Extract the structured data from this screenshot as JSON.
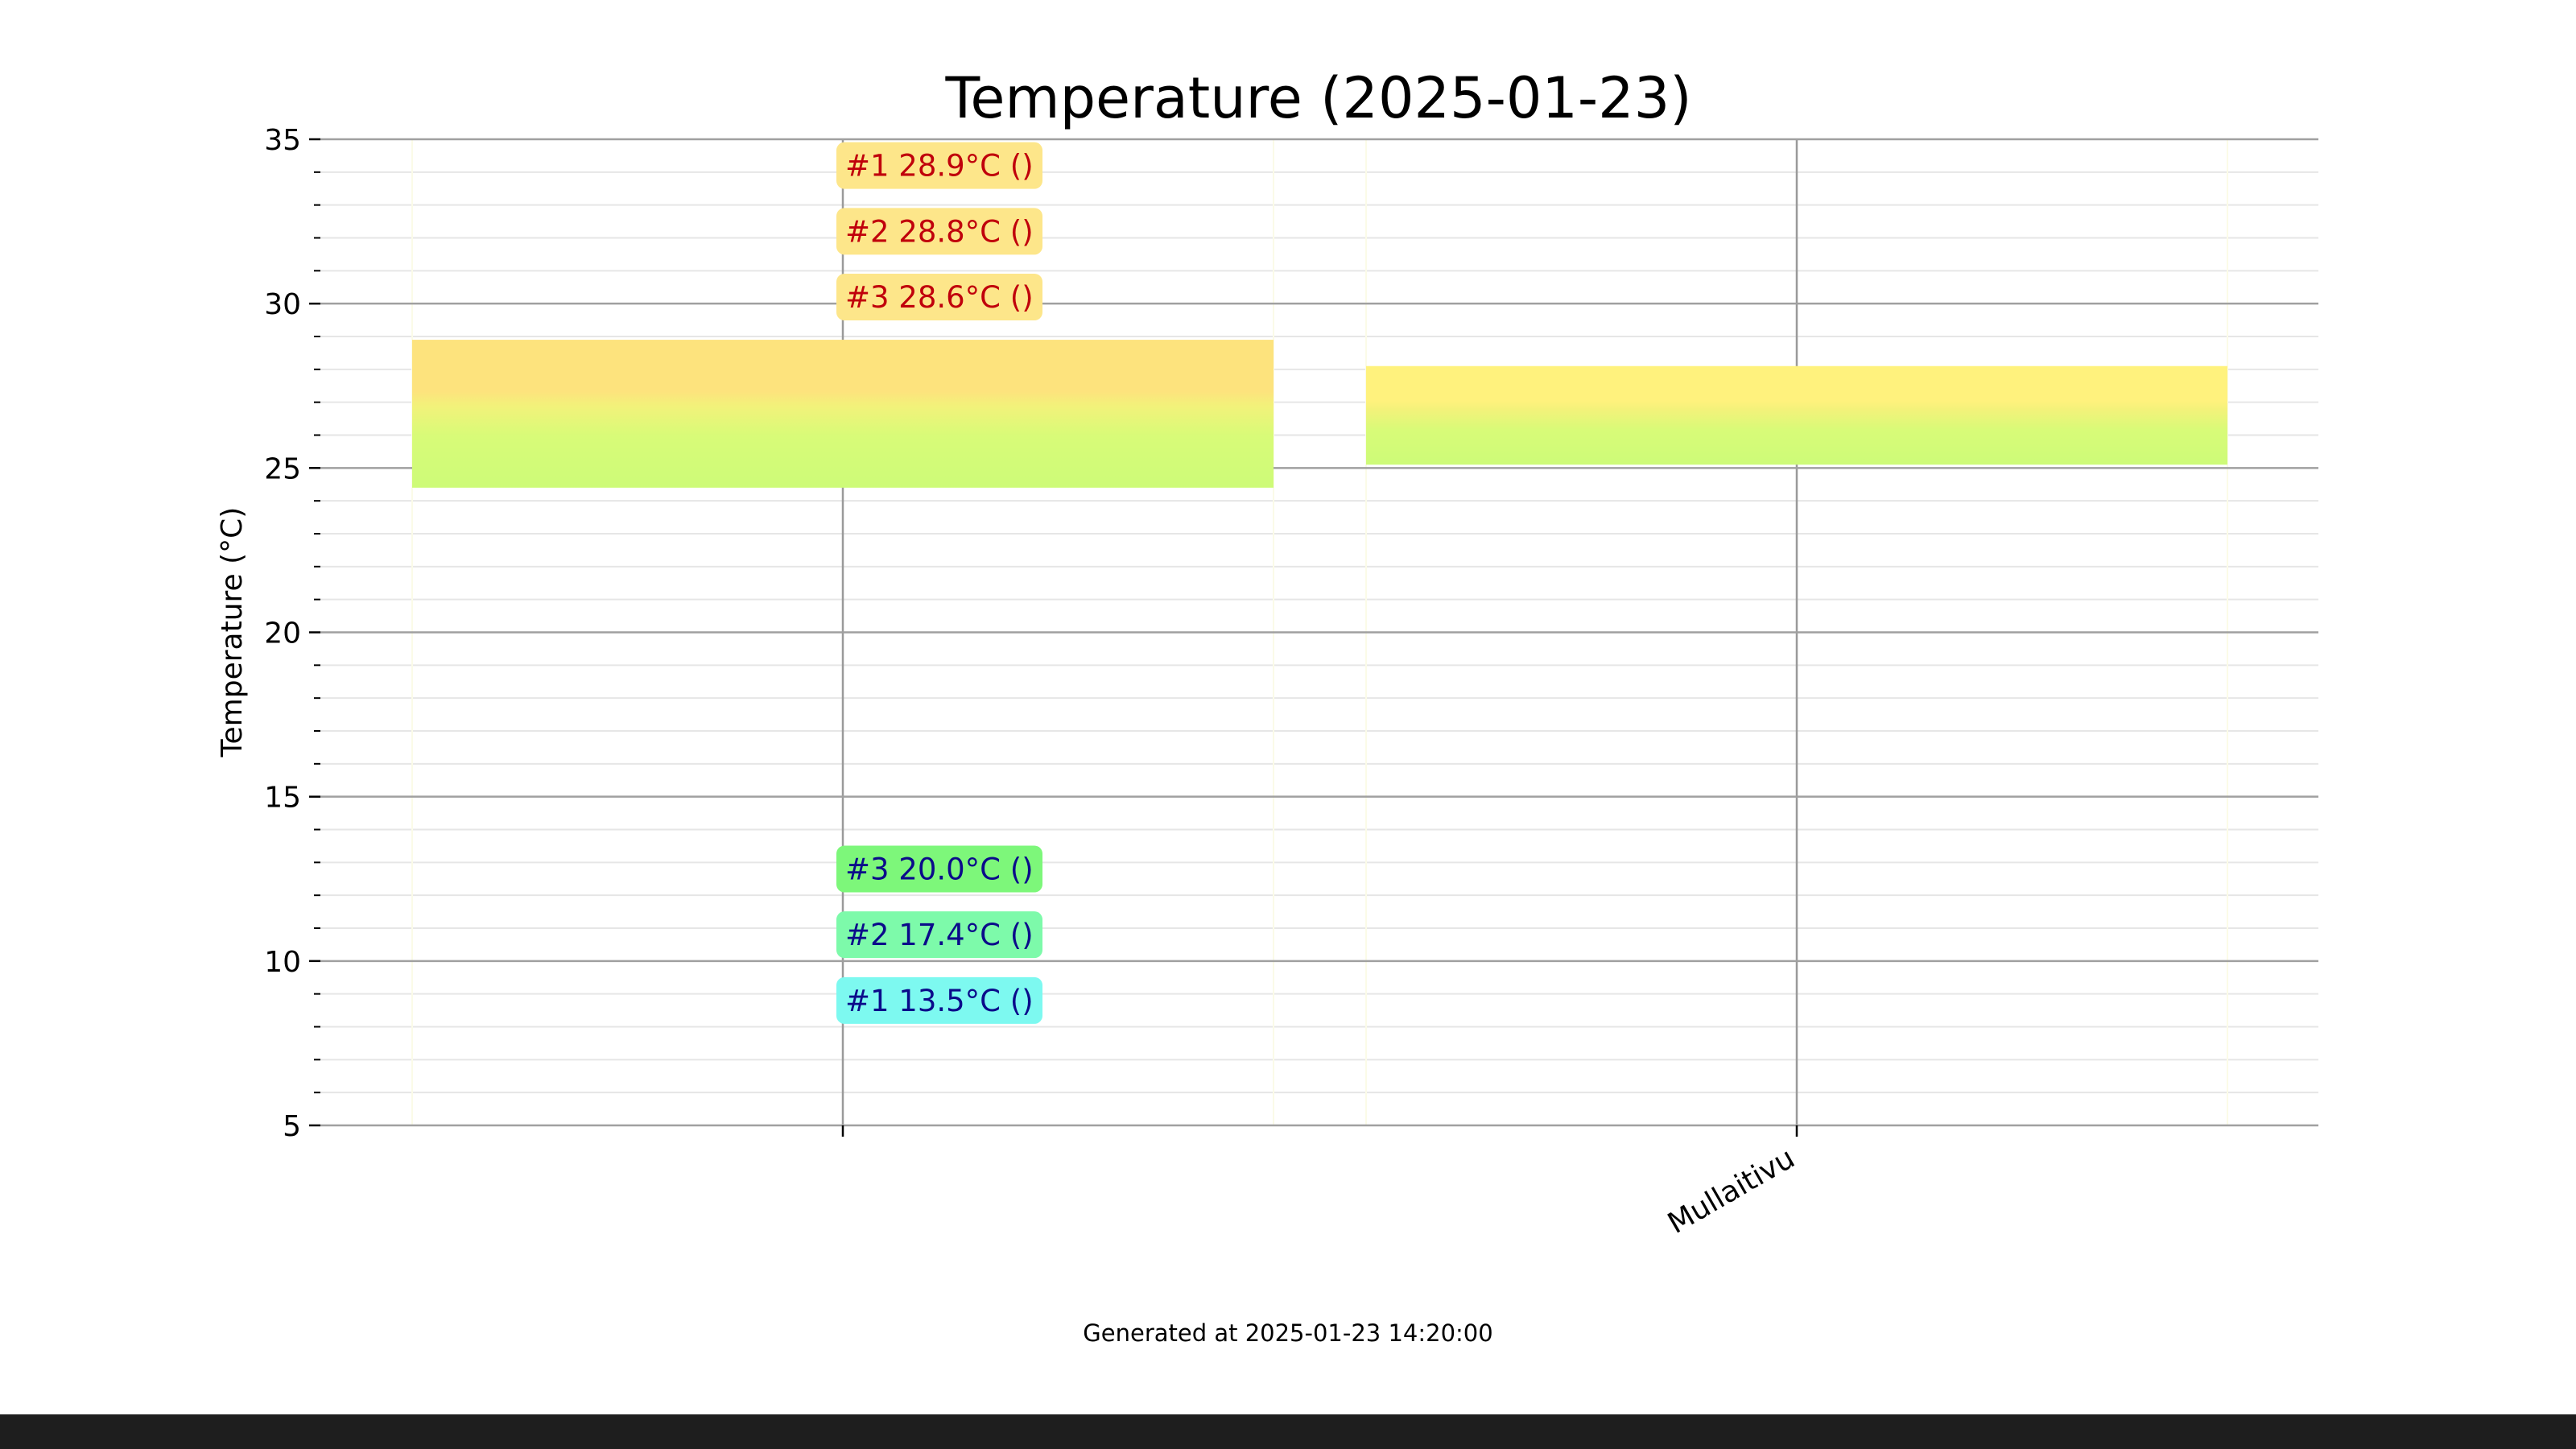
{
  "chart_data": {
    "type": "bar",
    "title": "Temperature (2025-01-23)",
    "ylabel": "Temperature (°C)",
    "xlabel": "",
    "ylim": [
      5,
      35
    ],
    "y_major_ticks": [
      5,
      10,
      15,
      20,
      25,
      30,
      35
    ],
    "y_minor_step": 1,
    "grid": true,
    "categories": [
      "",
      "Mullaitivu"
    ],
    "ranges": [
      {
        "category": "",
        "low": 24.4,
        "high": 28.9
      },
      {
        "category": "Mullaitivu",
        "low": 25.1,
        "high": 28.1
      }
    ],
    "annotations": [
      {
        "text": "#1 28.9°C ()",
        "category_index": 0,
        "y": 34.2,
        "kind": "high"
      },
      {
        "text": "#2 28.8°C ()",
        "category_index": 0,
        "y": 32.2,
        "kind": "high"
      },
      {
        "text": "#3 28.6°C ()",
        "category_index": 0,
        "y": 30.2,
        "kind": "high"
      },
      {
        "text": "#3 20.0°C ()",
        "category_index": 0,
        "y": 12.8,
        "kind": "low"
      },
      {
        "text": "#2 17.4°C ()",
        "category_index": 0,
        "y": 10.8,
        "kind": "low"
      },
      {
        "text": "#1 13.5°C ()",
        "category_index": 0,
        "y": 8.8,
        "kind": "low"
      }
    ],
    "footnote": "Generated at 2025-01-23 14:20:00",
    "colors": {
      "high_label_bg": "#fde68a",
      "high_label_text": "#c0000b",
      "low_label_text": "#0b0b8a",
      "low_label_bg_3": "#7df77a",
      "low_label_bg_2": "#7dfaaa",
      "low_label_bg_1": "#7df9f0"
    }
  }
}
